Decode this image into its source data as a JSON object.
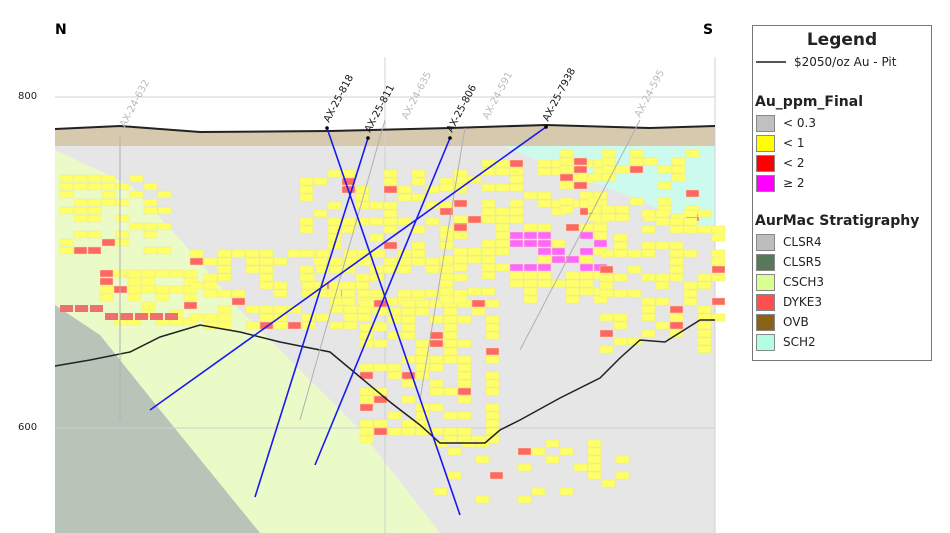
{
  "section": {
    "left_label": "N",
    "right_label": "S",
    "elevation_ticks": [
      "800",
      "600"
    ]
  },
  "drillholes": {
    "active": [
      "AX-25-818",
      "AX-25-811",
      "AX-25-806",
      "AX-25-7938"
    ],
    "historic": [
      "AX-24-632",
      "AX-24-635",
      "AX-24-591",
      "AX-24-595"
    ]
  },
  "legend": {
    "title": "Legend",
    "pit_label": "$2050/oz Au - Pit",
    "grade_title": "Au_ppm_Final",
    "grades": [
      {
        "label": "< 0.3",
        "color": "#c0c0c0"
      },
      {
        "label": "< 1",
        "color": "#ffff00"
      },
      {
        "label": "< 2",
        "color": "#ff0000"
      },
      {
        "label": "≥ 2",
        "color": "#ff00ff"
      }
    ],
    "strat_title": "AurMac Stratigraphy",
    "strat": [
      {
        "label": "CLSR4",
        "color": "#bdbdbd"
      },
      {
        "label": "CLSR5",
        "color": "#567a5a"
      },
      {
        "label": "CSCH3",
        "color": "#d8ff90"
      },
      {
        "label": "DYKE3",
        "color": "#ff5050"
      },
      {
        "label": "OVB",
        "color": "#8a6414"
      },
      {
        "label": "SCH2",
        "color": "#b0ffe0"
      }
    ]
  }
}
